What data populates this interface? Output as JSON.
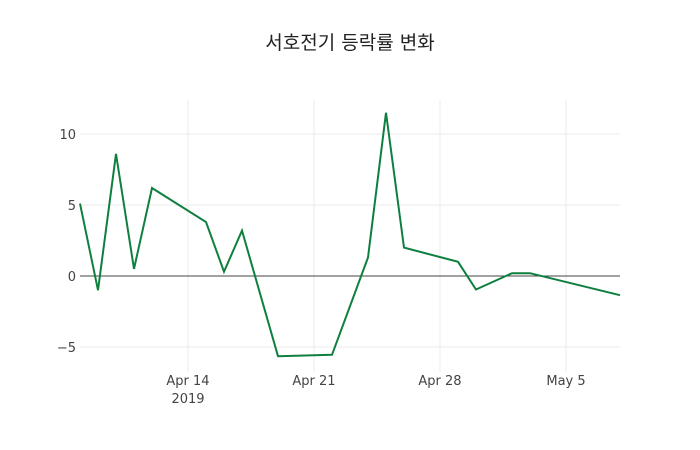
{
  "chart_data": {
    "type": "line",
    "title": "서호전기 등락률 변화",
    "xlabel": "",
    "ylabel": "",
    "x": [
      "2019-04-08",
      "2019-04-09",
      "2019-04-10",
      "2019-04-11",
      "2019-04-12",
      "2019-04-15",
      "2019-04-16",
      "2019-04-17",
      "2019-04-19",
      "2019-04-22",
      "2019-04-24",
      "2019-04-25",
      "2019-04-26",
      "2019-04-29",
      "2019-04-30",
      "2019-05-02",
      "2019-05-03",
      "2019-05-08"
    ],
    "series": [
      {
        "name": "등락률",
        "color": "#0f7f3f",
        "values": [
          5.1,
          -1.0,
          8.6,
          0.5,
          6.2,
          3.8,
          0.3,
          3.2,
          -5.65,
          -5.55,
          1.3,
          11.5,
          2.0,
          1.0,
          -0.95,
          0.2,
          0.2,
          -1.35
        ]
      }
    ],
    "x_tick_labels": [
      {
        "date": "2019-04-14",
        "label": "Apr 14",
        "sub": "2019"
      },
      {
        "date": "2019-04-21",
        "label": "Apr 21"
      },
      {
        "date": "2019-04-28",
        "label": "Apr 28"
      },
      {
        "date": "2019-05-05",
        "label": "May 5"
      }
    ],
    "y_ticks": [
      10,
      5,
      0,
      -5
    ],
    "y_tick_labels": [
      "10",
      "5",
      "0",
      "−5"
    ],
    "xlim": [
      "2019-04-08",
      "2019-05-08"
    ],
    "ylim": [
      -6.6,
      12.5
    ],
    "grid": true,
    "legend": "none"
  }
}
